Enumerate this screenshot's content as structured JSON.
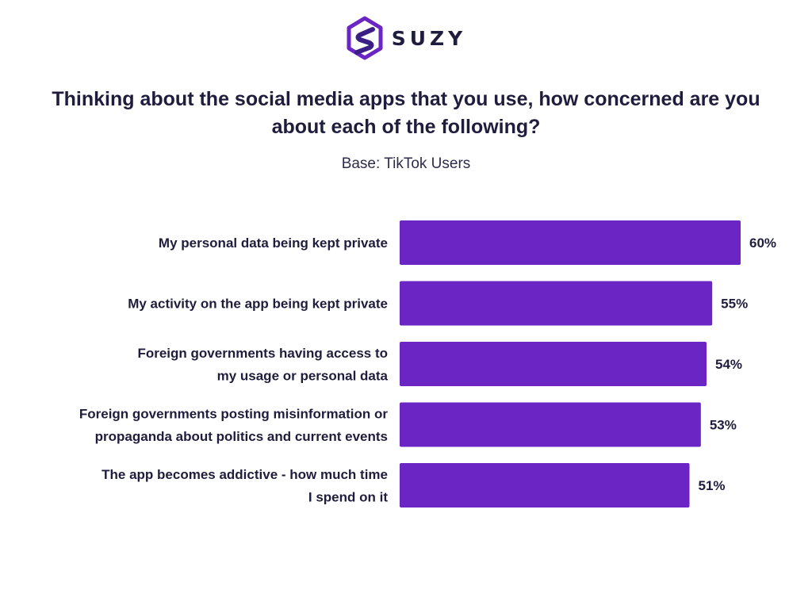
{
  "brand": {
    "name": "SUZY",
    "accent": "#6a25c4",
    "logo_icon": "suzy-hexagon-s-icon"
  },
  "chart_data": {
    "type": "bar",
    "orientation": "horizontal",
    "title": "Thinking about the social media apps that you use, how concerned are you about each of the following?",
    "subtitle": "Base: TikTok Users",
    "categories": [
      [
        "My personal data being kept private"
      ],
      [
        "My activity on the app being kept private"
      ],
      [
        "Foreign governments having access to",
        "my usage or personal data"
      ],
      [
        "Foreign governments posting misinformation or",
        "propaganda about politics and current events"
      ],
      [
        "The app becomes addictive - how much time",
        "I spend on it"
      ]
    ],
    "values": [
      60,
      55,
      54,
      53,
      51
    ],
    "value_labels": [
      "60%",
      "55%",
      "54%",
      "53%",
      "51%"
    ],
    "xlim": [
      0,
      60
    ],
    "bar_color": "#6a25c4",
    "grid": false,
    "legend": "none"
  }
}
